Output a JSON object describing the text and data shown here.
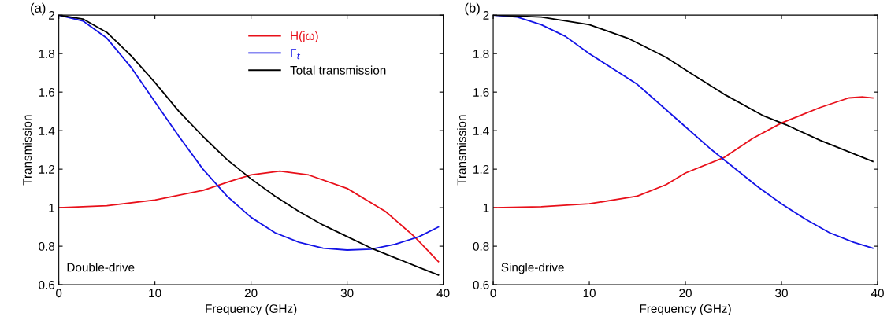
{
  "chart_data": [
    {
      "type": "line",
      "title": "(a)",
      "xlabel": "Frequency (GHz)",
      "ylabel": "Transmission",
      "xlim": [
        0,
        40
      ],
      "ylim": [
        0.6,
        2
      ],
      "xticks": [
        0,
        10,
        20,
        30,
        40
      ],
      "yticks": [
        0.6,
        0.8,
        1,
        1.2,
        1.4,
        1.6,
        1.8,
        2
      ],
      "legend": "top right",
      "grid": false,
      "annotations": [
        "Double-drive"
      ],
      "series": [
        {
          "name": "H(jω)",
          "color": "#e8101a",
          "x": [
            0,
            5,
            10,
            15,
            18,
            20,
            23,
            26,
            30,
            34,
            37,
            39.5
          ],
          "values": [
            1,
            1.01,
            1.04,
            1.09,
            1.14,
            1.17,
            1.19,
            1.17,
            1.1,
            0.98,
            0.85,
            0.72
          ]
        },
        {
          "name": "Γ$_{t}$",
          "color": "#1414e6",
          "x": [
            0,
            2.5,
            5,
            7.5,
            10,
            12.5,
            15,
            17.5,
            20,
            22.5,
            25,
            27.5,
            30,
            32.5,
            35,
            37.5,
            39.5
          ],
          "values": [
            2,
            1.97,
            1.88,
            1.73,
            1.55,
            1.37,
            1.2,
            1.06,
            0.95,
            0.87,
            0.82,
            0.79,
            0.78,
            0.785,
            0.81,
            0.85,
            0.9
          ]
        },
        {
          "name": "Total transmission",
          "color": "#000000",
          "x": [
            0,
            2.5,
            5,
            7.5,
            10,
            12.5,
            15,
            17.5,
            20,
            22.5,
            25,
            27.5,
            30,
            32.5,
            35,
            37.5,
            39.5
          ],
          "values": [
            2,
            1.98,
            1.91,
            1.79,
            1.65,
            1.5,
            1.37,
            1.25,
            1.15,
            1.06,
            0.98,
            0.91,
            0.85,
            0.79,
            0.74,
            0.69,
            0.65
          ]
        }
      ]
    },
    {
      "type": "line",
      "title": "(b)",
      "xlabel": "Frequency (GHz)",
      "ylabel": "Transmission",
      "xlim": [
        0,
        40
      ],
      "ylim": [
        0.6,
        2
      ],
      "xticks": [
        0,
        10,
        20,
        30,
        40
      ],
      "yticks": [
        0.6,
        0.8,
        1,
        1.2,
        1.4,
        1.6,
        1.8,
        2
      ],
      "grid": false,
      "annotations": [
        "Single-drive"
      ],
      "series": [
        {
          "color": "#e8101a",
          "x": [
            0,
            5,
            10,
            15,
            18,
            20,
            24,
            27,
            30,
            34,
            37,
            38.5,
            39.5
          ],
          "values": [
            1,
            1.005,
            1.02,
            1.06,
            1.12,
            1.18,
            1.26,
            1.36,
            1.44,
            1.52,
            1.57,
            1.575,
            1.57
          ]
        },
        {
          "color": "#1414e6",
          "x": [
            0,
            2.5,
            5,
            7.5,
            10,
            12.5,
            15,
            17.5,
            20,
            22.5,
            25,
            27.5,
            30,
            32.5,
            35,
            37.5,
            39.5
          ],
          "values": [
            2,
            1.99,
            1.95,
            1.89,
            1.8,
            1.72,
            1.64,
            1.53,
            1.42,
            1.31,
            1.21,
            1.11,
            1.02,
            0.94,
            0.87,
            0.82,
            0.79
          ]
        },
        {
          "color": "#000000",
          "x": [
            0,
            5,
            10,
            14,
            18,
            20.5,
            24,
            28,
            30.5,
            34,
            39.5
          ],
          "values": [
            2,
            1.99,
            1.95,
            1.88,
            1.78,
            1.7,
            1.59,
            1.48,
            1.43,
            1.35,
            1.24
          ]
        }
      ]
    }
  ]
}
